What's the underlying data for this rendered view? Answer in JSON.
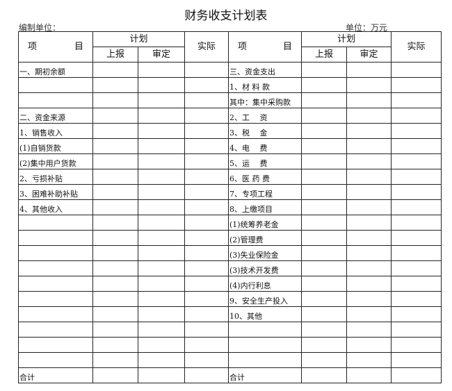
{
  "title": "财务收支计划表",
  "org_label": "编制单位：",
  "unit_label": "单位：万元",
  "header": {
    "item_left": "项",
    "item_right": "目",
    "plan": "计划",
    "reported": "上报",
    "approved": "审定",
    "actual": "实际"
  },
  "left_rows": [
    "一、期初余额",
    "",
    "",
    "二、资金来源",
    "1、销售收入",
    "(1)自销货款",
    "(2)集中用户货款",
    "2、亏损补贴",
    "3、困难补助补贴",
    "4、其他收入",
    "",
    "",
    "",
    "",
    "",
    "",
    "",
    "",
    "",
    "",
    "合计"
  ],
  "right_rows": [
    "三、资金支出",
    "1、材 料 款",
    "其中：集中采购款",
    "2、工　 资",
    "3、税　 金",
    "4、电　 费",
    "5、运　 费",
    "6、医 药 费",
    "7、专项工程",
    "8、上缴项目",
    "(1)统筹养老金",
    "(2)管理费",
    "(3)失业保险金",
    "(3)技术开发费",
    "(4)内行利息",
    "9、安全生产投入",
    "10、其他",
    "",
    "",
    "",
    "合计"
  ]
}
